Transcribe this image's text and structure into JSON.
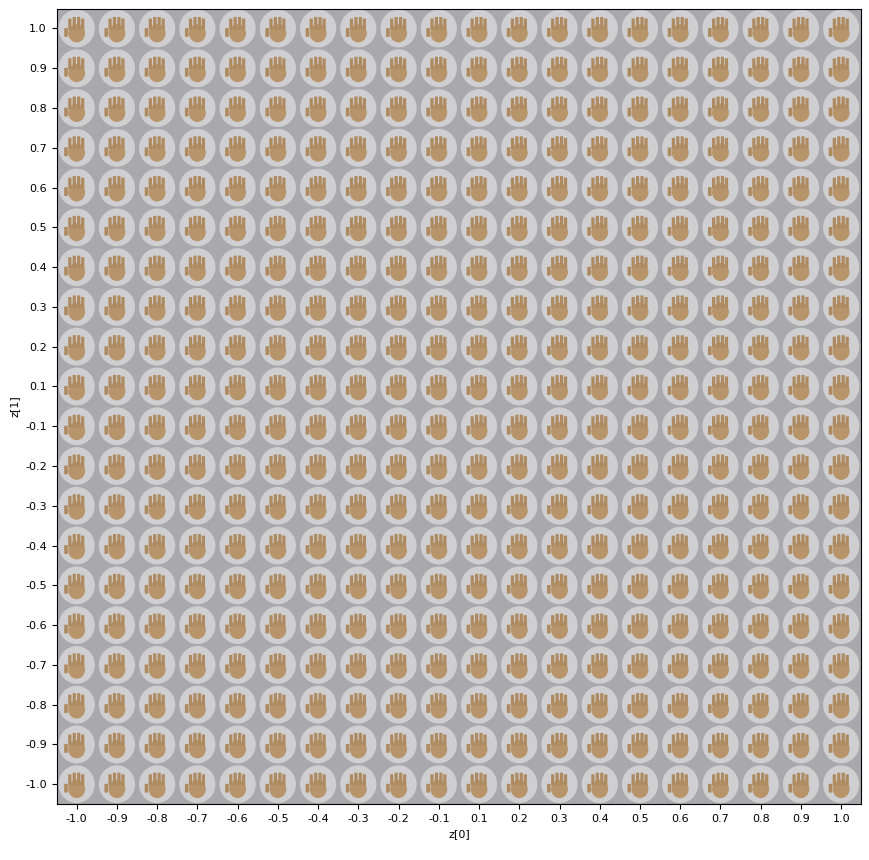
{
  "chart_data": {
    "type": "image_grid",
    "x_label": "z[0]",
    "y_label": "z[1]",
    "categories": [
      "-1.0",
      "-0.9",
      "-0.8",
      "-0.7",
      "-0.6",
      "-0.5",
      "-0.4",
      "-0.3",
      "-0.2",
      "-0.1",
      "0.1",
      "0.2",
      "0.3",
      "0.4",
      "0.5",
      "0.6",
      "0.7",
      "0.8",
      "0.9",
      "1.0"
    ],
    "y_categories": [
      "-1.0",
      "-0.9",
      "-0.8",
      "-0.7",
      "-0.6",
      "-0.5",
      "-0.4",
      "-0.3",
      "-0.2",
      "-0.1",
      "0.1",
      "0.2",
      "0.3",
      "0.4",
      "0.5",
      "0.6",
      "0.7",
      "0.8",
      "0.9",
      "1.0"
    ]
  }
}
